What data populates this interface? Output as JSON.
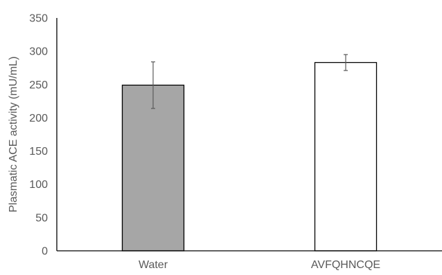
{
  "chart_data": {
    "type": "bar",
    "categories": [
      "Water",
      "AVFQHNCQE"
    ],
    "values": [
      249,
      283
    ],
    "errors": [
      35,
      12
    ],
    "ylabel": "Plasmatic ACE activity (mU/mL)",
    "ylim": [
      0,
      350
    ],
    "yticks": [
      0,
      50,
      100,
      150,
      200,
      250,
      300,
      350
    ],
    "grid": false,
    "legend": "none",
    "colors": {
      "bar_fills": [
        "#a6a6a6",
        "#ffffff"
      ],
      "bar_stroke": "#000000",
      "axis": "#000000",
      "text": "#595959",
      "error_bar": "#595959"
    }
  }
}
